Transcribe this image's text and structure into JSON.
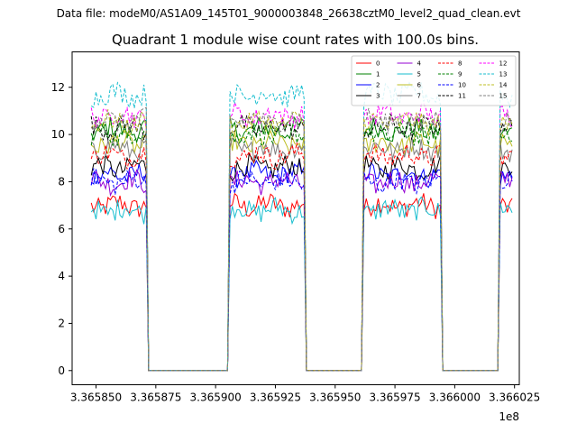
{
  "suptitle": "Data file: modeM0/AS1A09_145T01_9000003848_26638cztM0_level2_quad_clean.evt",
  "chart_data": {
    "type": "line",
    "title": "Quadrant 1 module wise count rates with 100.0s bins.",
    "xlabel": "",
    "ylabel": "",
    "x_offset_label": "1e8",
    "xlim": [
      3.36584,
      3.366027
    ],
    "ylim": [
      -0.6,
      13.5
    ],
    "x_ticks": [
      3.36585,
      3.365875,
      3.3659,
      3.365925,
      3.36595,
      3.365975,
      3.366,
      3.366025
    ],
    "x_tick_labels": [
      "3.365850",
      "3.365875",
      "3.365900",
      "3.365925",
      "3.365950",
      "3.365975",
      "3.366000",
      "3.366025"
    ],
    "y_ticks": [
      0,
      2,
      4,
      6,
      8,
      10,
      12
    ],
    "y_tick_labels": [
      "0",
      "2",
      "4",
      "6",
      "8",
      "10",
      "12"
    ],
    "good_time_intervals": [
      [
        3.365848,
        3.365871
      ],
      [
        3.365906,
        3.365937
      ],
      [
        3.365962,
        3.365994
      ],
      [
        3.366019,
        3.366024
      ]
    ],
    "gap_floor": 0.0,
    "series": [
      {
        "name": "0",
        "mean_rate": 7.0,
        "color": "#ff0000",
        "dash": "solid"
      },
      {
        "name": "1",
        "mean_rate": 10.2,
        "color": "#008000",
        "dash": "solid"
      },
      {
        "name": "2",
        "mean_rate": 8.3,
        "color": "#0000ff",
        "dash": "solid"
      },
      {
        "name": "3",
        "mean_rate": 8.6,
        "color": "#000000",
        "dash": "solid"
      },
      {
        "name": "4",
        "mean_rate": 8.0,
        "color": "#9400d3",
        "dash": "solid"
      },
      {
        "name": "5",
        "mean_rate": 6.8,
        "color": "#17becf",
        "dash": "solid"
      },
      {
        "name": "6",
        "mean_rate": 9.6,
        "color": "#bcbd22",
        "dash": "solid"
      },
      {
        "name": "7",
        "mean_rate": 9.4,
        "color": "#7f7f7f",
        "dash": "solid"
      },
      {
        "name": "8",
        "mean_rate": 9.1,
        "color": "#ff0000",
        "dash": "dashed"
      },
      {
        "name": "9",
        "mean_rate": 10.0,
        "color": "#008000",
        "dash": "dashed"
      },
      {
        "name": "10",
        "mean_rate": 8.0,
        "color": "#0000ff",
        "dash": "dashed"
      },
      {
        "name": "11",
        "mean_rate": 10.3,
        "color": "#000000",
        "dash": "dashed"
      },
      {
        "name": "12",
        "mean_rate": 10.8,
        "color": "#ff00ff",
        "dash": "dashed"
      },
      {
        "name": "13",
        "mean_rate": 11.7,
        "color": "#17becf",
        "dash": "dashed"
      },
      {
        "name": "14",
        "mean_rate": 10.5,
        "color": "#bcbd22",
        "dash": "dashed"
      },
      {
        "name": "15",
        "mean_rate": 10.6,
        "color": "#7f7f7f",
        "dash": "dashed"
      }
    ]
  }
}
